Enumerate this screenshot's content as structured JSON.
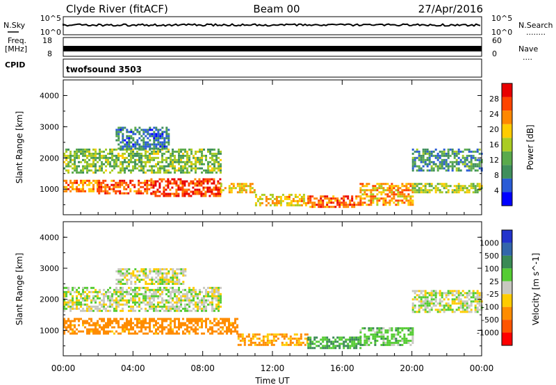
{
  "header": {
    "station": "Clyde River (fitACF)",
    "beam": "Beam 00",
    "date": "27/Apr/2016"
  },
  "strips": {
    "nsky_label": "N.Sky",
    "nsearch_label": "N.Search",
    "nsearch_marker": "........",
    "noise_left_ticks": [
      "10^5",
      "10^0"
    ],
    "noise_right_ticks": [
      "10^5",
      "10^0"
    ],
    "freq_label_1": "Freq.",
    "freq_label_2": "[MHz]",
    "freq_ticks": [
      "18",
      "8"
    ],
    "nave_label": "Nave",
    "nave_marker": "....",
    "nave_ticks": [
      "60",
      "0"
    ],
    "cpid_label": "CPID",
    "cpid_value": "twofsound 3503"
  },
  "colors": {
    "power_scale": [
      "#0000ff",
      "#2a5cd6",
      "#3f8f5c",
      "#5aaa4c",
      "#aacc22",
      "#ffcc00",
      "#ff8800",
      "#ff4400",
      "#e80000"
    ],
    "velocity_scale": [
      "#2233cc",
      "#3366aa",
      "#3a8a55",
      "#55cc33",
      "#c8c8c0",
      "#ffcc00",
      "#ff8c00",
      "#ff5500",
      "#ff0000"
    ]
  },
  "chart_data": [
    {
      "type": "heatmap",
      "panel": "power",
      "title": "",
      "xlabel": "",
      "ylabel": "Slant Range [km]",
      "xlim": [
        0,
        24
      ],
      "ylim": [
        180,
        4500
      ],
      "y_ticks": [
        "1000",
        "2000",
        "3000",
        "4000"
      ],
      "colorbar_label": "Power [dB]",
      "colorbar_ticks": [
        "4",
        "8",
        "12",
        "16",
        "20",
        "24",
        "28"
      ],
      "colorbar_range": [
        0,
        32
      ],
      "bands": [
        {
          "x": [
            0,
            2
          ],
          "range": [
            900,
            1300
          ],
          "value": 22
        },
        {
          "x": [
            2,
            5
          ],
          "range": [
            850,
            1300
          ],
          "value": 24
        },
        {
          "x": [
            5,
            9
          ],
          "range": [
            800,
            1350
          ],
          "value": 26
        },
        {
          "x": [
            9,
            11
          ],
          "range": [
            900,
            1200
          ],
          "value": 18
        },
        {
          "x": [
            11,
            14
          ],
          "range": [
            450,
            850
          ],
          "value": 18
        },
        {
          "x": [
            14,
            17
          ],
          "range": [
            450,
            800
          ],
          "value": 24
        },
        {
          "x": [
            17,
            20
          ],
          "range": [
            500,
            1200
          ],
          "value": 20
        },
        {
          "x": [
            20,
            24
          ],
          "range": [
            900,
            1200
          ],
          "value": 14
        },
        {
          "x": [
            0,
            9
          ],
          "range": [
            1500,
            2300
          ],
          "value": 12
        },
        {
          "x": [
            3,
            6
          ],
          "range": [
            2300,
            3000
          ],
          "value": 6
        },
        {
          "x": [
            20,
            24
          ],
          "range": [
            1600,
            2300
          ],
          "value": 8
        }
      ]
    },
    {
      "type": "heatmap",
      "panel": "velocity",
      "title": "",
      "xlabel": "Time UT",
      "ylabel": "Slant Range [km]",
      "xlim": [
        0,
        24
      ],
      "ylim": [
        180,
        4500
      ],
      "x_ticks": [
        "00:00",
        "04:00",
        "08:00",
        "12:00",
        "16:00",
        "20:00",
        "00:00"
      ],
      "y_ticks": [
        "1000",
        "2000",
        "3000",
        "4000"
      ],
      "colorbar_label": "Velocity [m s^-1]",
      "colorbar_ticks": [
        "1000",
        "500",
        "100",
        "25",
        "-25",
        "-100",
        "-500",
        "-1000"
      ],
      "bands": [
        {
          "x": [
            0,
            10
          ],
          "range": [
            900,
            1400
          ],
          "value": -150
        },
        {
          "x": [
            10,
            14
          ],
          "range": [
            500,
            900
          ],
          "value": -120
        },
        {
          "x": [
            14,
            17
          ],
          "range": [
            450,
            800
          ],
          "value": 90
        },
        {
          "x": [
            17,
            20
          ],
          "range": [
            500,
            1100
          ],
          "value": 60
        },
        {
          "x": [
            0,
            9
          ],
          "range": [
            1600,
            2400
          ],
          "value": 5
        },
        {
          "x": [
            3,
            7
          ],
          "range": [
            2500,
            3000
          ],
          "value": 5
        },
        {
          "x": [
            20,
            24
          ],
          "range": [
            1600,
            2300
          ],
          "value": 5
        }
      ]
    }
  ]
}
